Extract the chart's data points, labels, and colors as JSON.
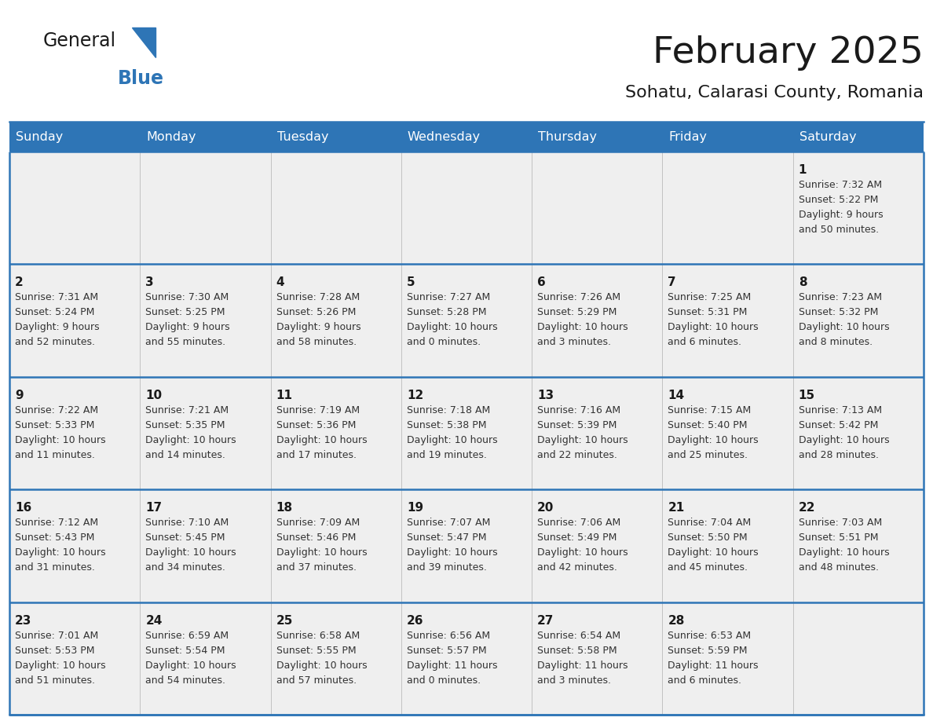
{
  "title": "February 2025",
  "subtitle": "Sohatu, Calarasi County, Romania",
  "header_bg": "#2E75B6",
  "header_text": "#FFFFFF",
  "cell_bg": "#EFEFEF",
  "border_color": "#2E75B6",
  "title_color": "#1a1a1a",
  "subtitle_color": "#1a1a1a",
  "day_number_color": "#1a1a1a",
  "text_color": "#333333",
  "day_names": [
    "Sunday",
    "Monday",
    "Tuesday",
    "Wednesday",
    "Thursday",
    "Friday",
    "Saturday"
  ],
  "days": [
    {
      "day": 1,
      "col": 6,
      "row": 0,
      "sunrise": "7:32 AM",
      "sunset": "5:22 PM",
      "daylight": "9 hours\nand 50 minutes."
    },
    {
      "day": 2,
      "col": 0,
      "row": 1,
      "sunrise": "7:31 AM",
      "sunset": "5:24 PM",
      "daylight": "9 hours\nand 52 minutes."
    },
    {
      "day": 3,
      "col": 1,
      "row": 1,
      "sunrise": "7:30 AM",
      "sunset": "5:25 PM",
      "daylight": "9 hours\nand 55 minutes."
    },
    {
      "day": 4,
      "col": 2,
      "row": 1,
      "sunrise": "7:28 AM",
      "sunset": "5:26 PM",
      "daylight": "9 hours\nand 58 minutes."
    },
    {
      "day": 5,
      "col": 3,
      "row": 1,
      "sunrise": "7:27 AM",
      "sunset": "5:28 PM",
      "daylight": "10 hours\nand 0 minutes."
    },
    {
      "day": 6,
      "col": 4,
      "row": 1,
      "sunrise": "7:26 AM",
      "sunset": "5:29 PM",
      "daylight": "10 hours\nand 3 minutes."
    },
    {
      "day": 7,
      "col": 5,
      "row": 1,
      "sunrise": "7:25 AM",
      "sunset": "5:31 PM",
      "daylight": "10 hours\nand 6 minutes."
    },
    {
      "day": 8,
      "col": 6,
      "row": 1,
      "sunrise": "7:23 AM",
      "sunset": "5:32 PM",
      "daylight": "10 hours\nand 8 minutes."
    },
    {
      "day": 9,
      "col": 0,
      "row": 2,
      "sunrise": "7:22 AM",
      "sunset": "5:33 PM",
      "daylight": "10 hours\nand 11 minutes."
    },
    {
      "day": 10,
      "col": 1,
      "row": 2,
      "sunrise": "7:21 AM",
      "sunset": "5:35 PM",
      "daylight": "10 hours\nand 14 minutes."
    },
    {
      "day": 11,
      "col": 2,
      "row": 2,
      "sunrise": "7:19 AM",
      "sunset": "5:36 PM",
      "daylight": "10 hours\nand 17 minutes."
    },
    {
      "day": 12,
      "col": 3,
      "row": 2,
      "sunrise": "7:18 AM",
      "sunset": "5:38 PM",
      "daylight": "10 hours\nand 19 minutes."
    },
    {
      "day": 13,
      "col": 4,
      "row": 2,
      "sunrise": "7:16 AM",
      "sunset": "5:39 PM",
      "daylight": "10 hours\nand 22 minutes."
    },
    {
      "day": 14,
      "col": 5,
      "row": 2,
      "sunrise": "7:15 AM",
      "sunset": "5:40 PM",
      "daylight": "10 hours\nand 25 minutes."
    },
    {
      "day": 15,
      "col": 6,
      "row": 2,
      "sunrise": "7:13 AM",
      "sunset": "5:42 PM",
      "daylight": "10 hours\nand 28 minutes."
    },
    {
      "day": 16,
      "col": 0,
      "row": 3,
      "sunrise": "7:12 AM",
      "sunset": "5:43 PM",
      "daylight": "10 hours\nand 31 minutes."
    },
    {
      "day": 17,
      "col": 1,
      "row": 3,
      "sunrise": "7:10 AM",
      "sunset": "5:45 PM",
      "daylight": "10 hours\nand 34 minutes."
    },
    {
      "day": 18,
      "col": 2,
      "row": 3,
      "sunrise": "7:09 AM",
      "sunset": "5:46 PM",
      "daylight": "10 hours\nand 37 minutes."
    },
    {
      "day": 19,
      "col": 3,
      "row": 3,
      "sunrise": "7:07 AM",
      "sunset": "5:47 PM",
      "daylight": "10 hours\nand 39 minutes."
    },
    {
      "day": 20,
      "col": 4,
      "row": 3,
      "sunrise": "7:06 AM",
      "sunset": "5:49 PM",
      "daylight": "10 hours\nand 42 minutes."
    },
    {
      "day": 21,
      "col": 5,
      "row": 3,
      "sunrise": "7:04 AM",
      "sunset": "5:50 PM",
      "daylight": "10 hours\nand 45 minutes."
    },
    {
      "day": 22,
      "col": 6,
      "row": 3,
      "sunrise": "7:03 AM",
      "sunset": "5:51 PM",
      "daylight": "10 hours\nand 48 minutes."
    },
    {
      "day": 23,
      "col": 0,
      "row": 4,
      "sunrise": "7:01 AM",
      "sunset": "5:53 PM",
      "daylight": "10 hours\nand 51 minutes."
    },
    {
      "day": 24,
      "col": 1,
      "row": 4,
      "sunrise": "6:59 AM",
      "sunset": "5:54 PM",
      "daylight": "10 hours\nand 54 minutes."
    },
    {
      "day": 25,
      "col": 2,
      "row": 4,
      "sunrise": "6:58 AM",
      "sunset": "5:55 PM",
      "daylight": "10 hours\nand 57 minutes."
    },
    {
      "day": 26,
      "col": 3,
      "row": 4,
      "sunrise": "6:56 AM",
      "sunset": "5:57 PM",
      "daylight": "11 hours\nand 0 minutes."
    },
    {
      "day": 27,
      "col": 4,
      "row": 4,
      "sunrise": "6:54 AM",
      "sunset": "5:58 PM",
      "daylight": "11 hours\nand 3 minutes."
    },
    {
      "day": 28,
      "col": 5,
      "row": 4,
      "sunrise": "6:53 AM",
      "sunset": "5:59 PM",
      "daylight": "11 hours\nand 6 minutes."
    }
  ],
  "num_rows": 5,
  "num_cols": 7,
  "logo_general_color": "#1a1a1a",
  "logo_blue_color": "#2E75B6",
  "logo_triangle_color": "#2E75B6"
}
